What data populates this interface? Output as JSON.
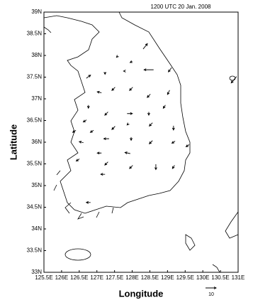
{
  "chart_data": {
    "type": "vector",
    "title": "1200 UTC 20 Jan. 2008",
    "xlabel": "Longitude",
    "ylabel": "Latitude",
    "xlim": [
      125.5,
      131
    ],
    "ylim": [
      33,
      39
    ],
    "xticks": [
      {
        "value": 125.5,
        "label": "125.5E"
      },
      {
        "value": 126,
        "label": "126E"
      },
      {
        "value": 126.5,
        "label": "126.5E"
      },
      {
        "value": 127,
        "label": "127E"
      },
      {
        "value": 127.5,
        "label": "127.5E"
      },
      {
        "value": 128,
        "label": "128E"
      },
      {
        "value": 128.5,
        "label": "128.5E"
      },
      {
        "value": 129,
        "label": "129E"
      },
      {
        "value": 129.5,
        "label": "129.5E"
      },
      {
        "value": 130,
        "label": "130E"
      },
      {
        "value": 130.5,
        "label": "130.5E"
      },
      {
        "value": 131,
        "label": "131E"
      }
    ],
    "yticks": [
      {
        "value": 33,
        "label": "33N"
      },
      {
        "value": 33.5,
        "label": "33.5N"
      },
      {
        "value": 34,
        "label": "34N"
      },
      {
        "value": 34.5,
        "label": "34.5N"
      },
      {
        "value": 35,
        "label": "35N"
      },
      {
        "value": 35.5,
        "label": "35.5N"
      },
      {
        "value": 36,
        "label": "36N"
      },
      {
        "value": 36.5,
        "label": "36.5N"
      },
      {
        "value": 37,
        "label": "37N"
      },
      {
        "value": 37.5,
        "label": "37.5N"
      },
      {
        "value": 38,
        "label": "38N"
      },
      {
        "value": 38.5,
        "label": "38.5N"
      },
      {
        "value": 39,
        "label": "39N"
      }
    ],
    "x": [
      128.37,
      127.97,
      127.57,
      126.76,
      127.23,
      127.77,
      128.47,
      129.07,
      127.07,
      127.47,
      127.97,
      128.47,
      129.03,
      126.76,
      127.27,
      127.93,
      128.47,
      128.91,
      126.66,
      127.87,
      126.36,
      126.86,
      127.47,
      128.53,
      129.17,
      127.27,
      126.56,
      127.97,
      128.53,
      129.17,
      129.57,
      127.07,
      127.87,
      126.46,
      127.27,
      127.97,
      128.67,
      129.17,
      127.17,
      130.88,
      126.76
    ],
    "y": [
      38.21,
      37.85,
      37.97,
      37.51,
      37.59,
      37.64,
      37.67,
      37.67,
      37.15,
      37.23,
      37.23,
      37.07,
      37.15,
      36.82,
      36.66,
      36.66,
      36.66,
      36.82,
      36.49,
      36.41,
      36.25,
      36.25,
      36.33,
      36.41,
      36.33,
      36.08,
      36.0,
      36.08,
      36.0,
      36.0,
      35.92,
      35.75,
      35.75,
      35.59,
      35.51,
      35.43,
      35.43,
      35.43,
      35.26,
      37.44,
      34.61
    ],
    "u": [
      4,
      -2,
      -1,
      4,
      0,
      -1,
      -9,
      -3,
      -4,
      -3,
      -3,
      -3,
      -2,
      0,
      -3,
      5,
      0,
      -2,
      -3,
      -1,
      -3,
      -3,
      -3,
      -3,
      0,
      -5,
      -4,
      0,
      -3,
      -3,
      -3,
      -4,
      -5,
      -3,
      -3,
      -3,
      0,
      -2,
      -4,
      -5,
      -4
    ],
    "v": [
      5,
      -1,
      -1,
      3,
      -2,
      0,
      0,
      -4,
      1,
      -3,
      -3,
      -3,
      -4,
      -3,
      -3,
      0,
      -3,
      -3,
      -2,
      -1,
      -2,
      -2,
      -3,
      -3,
      -4,
      0,
      1,
      -3,
      -3,
      -2,
      -2,
      0,
      1,
      -2,
      -3,
      -3,
      -5,
      -3,
      0,
      -6,
      0
    ],
    "reference_vector": 10,
    "color": "#000000"
  }
}
